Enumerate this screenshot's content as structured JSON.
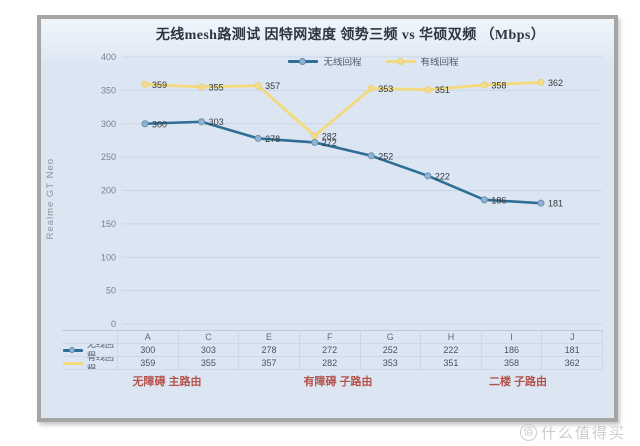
{
  "side_label": "Realme GT Neo",
  "watermark": {
    "logo_char": "值",
    "text": "什么值得买"
  },
  "chart_data": {
    "type": "line",
    "title": "无线mesh路测试 因特网速度 领势三频 vs 华硕双频 （Mbps）",
    "categories": [
      "A",
      "C",
      "E",
      "F",
      "G",
      "H",
      "I",
      "J"
    ],
    "series": [
      {
        "name": "无线回程",
        "color": "#2f6e96",
        "marker_fill": "#93b2d0",
        "marker_stroke": "#5e8aaf",
        "values": [
          300,
          303,
          278,
          272,
          252,
          222,
          186,
          181
        ]
      },
      {
        "name": "有线回程",
        "color": "#f2da81",
        "marker_fill": "#f3dc8d",
        "marker_stroke": "#e9ce72",
        "values": [
          359,
          355,
          357,
          282,
          353,
          351,
          358,
          362
        ]
      }
    ],
    "ylim": [
      0,
      400
    ],
    "yticks": [
      0,
      50,
      100,
      150,
      200,
      250,
      300,
      350,
      400
    ],
    "grid": true,
    "legend_position": "top",
    "data_table_shown": true,
    "group_labels": [
      "无障碍 主路由",
      "有障碍  子路由",
      "二楼 子路由"
    ],
    "group_label_color": "#b5534d",
    "panel_background": "#dce6f2",
    "frame_color": "#a5a5a5",
    "gridline_color": "#c9d6e8"
  }
}
